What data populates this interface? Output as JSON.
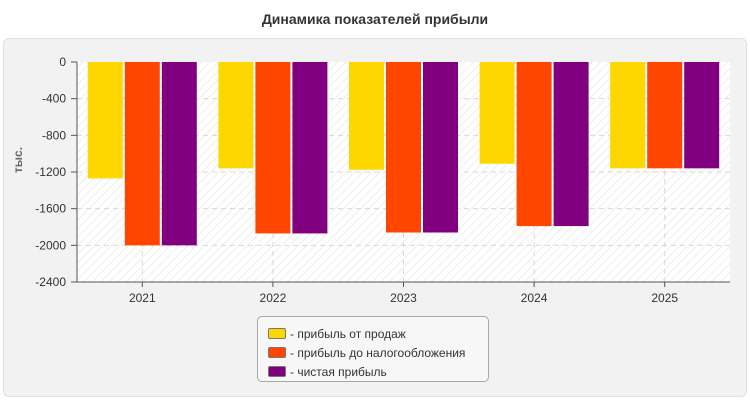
{
  "chart_data": {
    "type": "bar",
    "title": "Динамика показателей прибыли",
    "ylabel": "тыс.",
    "categories": [
      "2021",
      "2022",
      "2023",
      "2024",
      "2025"
    ],
    "ylim": [
      -2400,
      0
    ],
    "yticks": [
      "0",
      "-400",
      "-800",
      "-1200",
      "-1600",
      "-2000",
      "-2400"
    ],
    "grid": true,
    "legend_position": "bottom-center",
    "series": [
      {
        "name": "- прибыль от продаж",
        "color": "#FFD700",
        "values": [
          -1270,
          -1160,
          -1175,
          -1110,
          -1160
        ]
      },
      {
        "name": "- прибыль до налогообложения",
        "color": "#FF4500",
        "values": [
          -2000,
          -1870,
          -1860,
          -1790,
          -1160
        ]
      },
      {
        "name": "- чистая прибыль",
        "color": "#800080",
        "values": [
          -2000,
          -1870,
          -1860,
          -1790,
          -1160
        ]
      }
    ]
  }
}
